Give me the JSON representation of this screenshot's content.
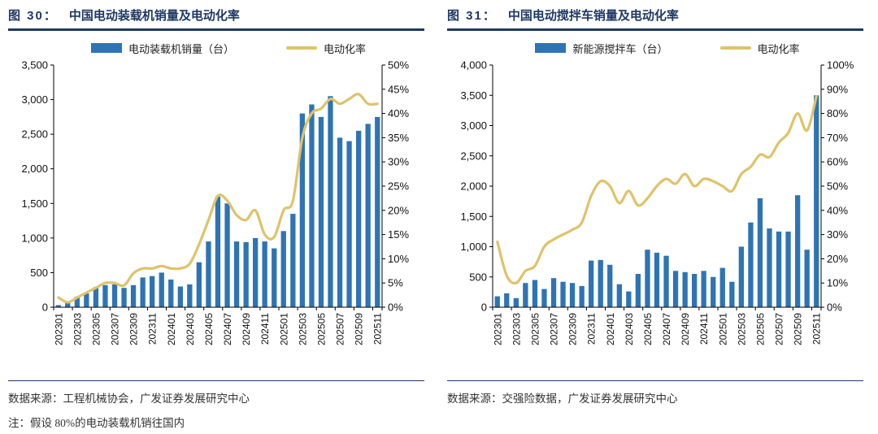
{
  "colors": {
    "bar": "#2e74b5",
    "line": "#dfc36a",
    "navy": "#1f3864",
    "axis": "#000000"
  },
  "charts": [
    {
      "figure_label": "图 30：",
      "title": "中国电动装载机销量及电动化率",
      "source": "数据来源：工程机械协会，广发证券发展研究中心",
      "note": "注：假设 80%的电动装载机销往国内"
    },
    {
      "figure_label": "图 31：",
      "title": "中国电动搅拌车销量及电动化率",
      "source": "数据来源：交强险数据，广发证券发展研究中心"
    }
  ],
  "chart_data": [
    {
      "type": "bar+line",
      "title": "中国电动装载机销量及电动化率",
      "legend_position": "top",
      "x_label_every": 2,
      "categories": [
        "202301",
        "202302",
        "202303",
        "202304",
        "202305",
        "202306",
        "202307",
        "202308",
        "202309",
        "202310",
        "202311",
        "202312",
        "202401",
        "202402",
        "202403",
        "202404",
        "202405",
        "202406",
        "202407",
        "202408",
        "202409",
        "202410",
        "202411",
        "202412",
        "202501",
        "202502",
        "202503",
        "202504",
        "202505",
        "202506",
        "202507",
        "202508",
        "202509",
        "202510",
        "202511"
      ],
      "y_left": {
        "min": 0,
        "max": 3500,
        "step": 500,
        "format": "number"
      },
      "y_right": {
        "min": 0,
        "max": 0.5,
        "step": 0.05,
        "format": "percent"
      },
      "series": [
        {
          "name": "电动装载机销量（台）",
          "type": "bar",
          "axis": "left",
          "values": [
            30,
            60,
            150,
            200,
            290,
            320,
            330,
            280,
            320,
            430,
            450,
            500,
            400,
            300,
            330,
            650,
            950,
            1600,
            1500,
            950,
            940,
            1000,
            950,
            850,
            1100,
            1350,
            2800,
            2930,
            2750,
            3050,
            2450,
            2400,
            2550,
            2650,
            2750
          ]
        },
        {
          "name": "电动化率",
          "type": "line",
          "axis": "right",
          "values": [
            0.02,
            0.01,
            0.02,
            0.03,
            0.04,
            0.05,
            0.05,
            0.045,
            0.07,
            0.08,
            0.08,
            0.085,
            0.08,
            0.08,
            0.09,
            0.13,
            0.18,
            0.23,
            0.22,
            0.19,
            0.18,
            0.2,
            0.15,
            0.145,
            0.2,
            0.22,
            0.35,
            0.4,
            0.41,
            0.43,
            0.42,
            0.43,
            0.44,
            0.42,
            0.42
          ]
        }
      ]
    },
    {
      "type": "bar+line",
      "title": "中国电动搅拌车销量及电动化率",
      "legend_position": "top",
      "x_label_every": 2,
      "categories": [
        "202301",
        "202302",
        "202303",
        "202304",
        "202305",
        "202306",
        "202307",
        "202308",
        "202309",
        "202310",
        "202311",
        "202312",
        "202401",
        "202402",
        "202403",
        "202404",
        "202405",
        "202406",
        "202407",
        "202408",
        "202409",
        "202410",
        "202411",
        "202412",
        "202501",
        "202502",
        "202503",
        "202504",
        "202505",
        "202506",
        "202507",
        "202508",
        "202509",
        "202510",
        "202511"
      ],
      "y_left": {
        "min": 0,
        "max": 4000,
        "step": 500,
        "format": "number"
      },
      "y_right": {
        "min": 0,
        "max": 1.0,
        "step": 0.1,
        "format": "percent"
      },
      "series": [
        {
          "name": "新能源搅拌车（台）",
          "type": "bar",
          "axis": "left",
          "values": [
            180,
            230,
            150,
            400,
            450,
            300,
            480,
            420,
            400,
            350,
            770,
            780,
            700,
            380,
            260,
            550,
            950,
            900,
            850,
            600,
            580,
            550,
            600,
            500,
            650,
            420,
            1000,
            1400,
            1800,
            1300,
            1250,
            1250,
            1850,
            950,
            3500
          ]
        },
        {
          "name": "电动化率",
          "type": "line",
          "axis": "right",
          "values": [
            0.27,
            0.13,
            0.1,
            0.15,
            0.17,
            0.25,
            0.28,
            0.3,
            0.32,
            0.35,
            0.46,
            0.52,
            0.5,
            0.43,
            0.48,
            0.42,
            0.45,
            0.5,
            0.53,
            0.51,
            0.55,
            0.5,
            0.53,
            0.52,
            0.5,
            0.48,
            0.55,
            0.58,
            0.63,
            0.62,
            0.68,
            0.72,
            0.8,
            0.73,
            0.87
          ]
        }
      ]
    }
  ]
}
